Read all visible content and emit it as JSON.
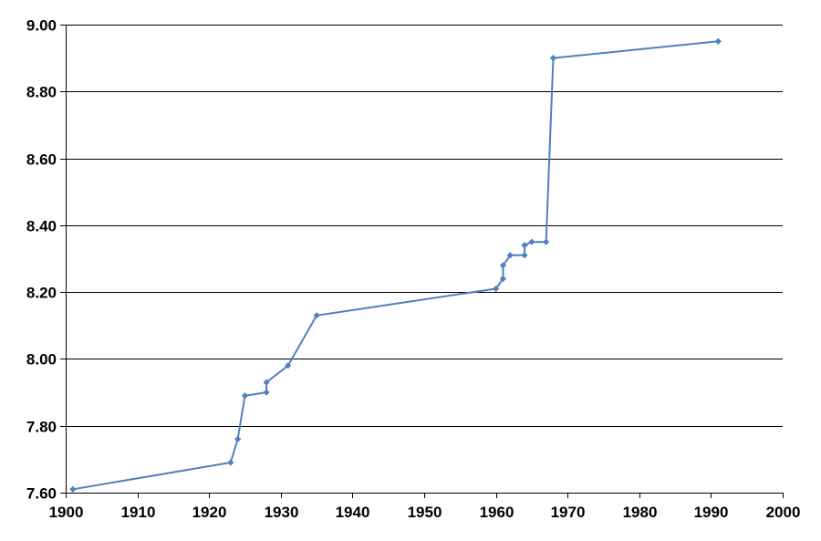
{
  "chart_data": {
    "type": "line",
    "title": "",
    "xlabel": "",
    "ylabel": "",
    "xlim": [
      1900,
      2000
    ],
    "ylim": [
      7.6,
      9.0
    ],
    "x_ticks": [
      1900,
      1910,
      1920,
      1930,
      1940,
      1950,
      1960,
      1970,
      1980,
      1990,
      2000
    ],
    "y_ticks": [
      7.6,
      7.8,
      8.0,
      8.2,
      8.4,
      8.6,
      8.8,
      9.0
    ],
    "x_tick_labels": [
      "1900",
      "1910",
      "1920",
      "1930",
      "1940",
      "1950",
      "1960",
      "1970",
      "1980",
      "1990",
      "2000"
    ],
    "y_tick_labels": [
      "7.60",
      "7.80",
      "8.00",
      "8.20",
      "8.40",
      "8.60",
      "8.80",
      "9.00"
    ],
    "grid": "horizontal",
    "legend": "none",
    "colors": {
      "series": "#4F81BD",
      "grid": "#000000"
    },
    "series": [
      {
        "marker": "diamond",
        "points": [
          [
            1901,
            7.61
          ],
          [
            1923,
            7.69
          ],
          [
            1924,
            7.76
          ],
          [
            1925,
            7.89
          ],
          [
            1928,
            7.9
          ],
          [
            1928,
            7.93
          ],
          [
            1931,
            7.98
          ],
          [
            1935,
            8.13
          ],
          [
            1960,
            8.21
          ],
          [
            1961,
            8.24
          ],
          [
            1961,
            8.28
          ],
          [
            1962,
            8.31
          ],
          [
            1964,
            8.31
          ],
          [
            1964,
            8.34
          ],
          [
            1965,
            8.35
          ],
          [
            1967,
            8.35
          ],
          [
            1968,
            8.9
          ],
          [
            1991,
            8.95
          ]
        ]
      }
    ]
  }
}
